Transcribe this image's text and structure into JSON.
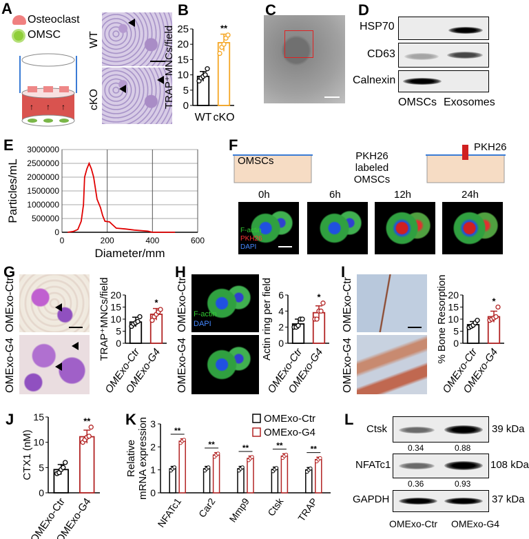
{
  "panels": {
    "A": "A",
    "B": "B",
    "C": "C",
    "D": "D",
    "E": "E",
    "F": "F",
    "G": "G",
    "H": "H",
    "I": "I",
    "J": "J",
    "K": "K",
    "L": "L"
  },
  "panelA": {
    "legend_osteoclast": "Osteoclast",
    "legend_omsc": "OMSC",
    "row_wt": "WT",
    "row_cko": "cKO"
  },
  "panelD": {
    "rows": [
      "HSP70",
      "CD63",
      "Calnexin"
    ],
    "columns": [
      "OMSCs",
      "Exosomes"
    ]
  },
  "panelF": {
    "dish_left": "OMSCs",
    "dish_middle": "PKH26 labeled OMSCs",
    "dye": "PKH26",
    "times": [
      "0h",
      "6h",
      "12h",
      "24h"
    ],
    "stain_factin": "F-actin",
    "stain_pkh26": "PKH26",
    "stain_dapi": "DAPI"
  },
  "panelG": {
    "row_ctr": "OMExo-Ctr",
    "row_g4": "OMExo-G4"
  },
  "panelH": {
    "row_ctr": "OMExo-Ctr",
    "row_g4": "OMExo-G4",
    "stain_factin": "F-actin",
    "stain_dapi": "DAPI"
  },
  "panelI": {
    "row_ctr": "OMExo-Ctr",
    "row_g4": "OMExo-G4"
  },
  "panelL": {
    "rows": [
      {
        "name": "Ctsk",
        "kda": "39 kDa",
        "values": [
          "0.34",
          "0.88"
        ]
      },
      {
        "name": "NFATc1",
        "kda": "108 kDa",
        "values": [
          "0.36",
          "0.93"
        ]
      },
      {
        "name": "GAPDH",
        "kda": "37 kDa",
        "values": []
      }
    ],
    "columns": [
      "OMExo-Ctr",
      "OMExo-G4"
    ]
  },
  "colors": {
    "control": "#000000",
    "cko": "#f5a623",
    "g4": "#b22222",
    "line": "#e00000"
  },
  "chart_data": [
    {
      "id": "B",
      "type": "bar",
      "categories": [
        "WT",
        "cKO"
      ],
      "values": [
        9.5,
        20.5
      ],
      "errors": [
        1.6,
        2.8
      ],
      "points": [
        [
          8,
          9,
          9.5,
          10,
          12
        ],
        [
          17,
          19,
          20,
          22,
          23
        ]
      ],
      "significance": [
        "",
        "**"
      ],
      "ylabel": "TRAP⁺MNCs/field",
      "ylim": [
        0,
        25
      ],
      "yticks": [
        0,
        5,
        10,
        15,
        20,
        25
      ]
    },
    {
      "id": "E",
      "type": "line",
      "x": [
        25,
        50,
        70,
        85,
        95,
        100,
        110,
        120,
        130,
        140,
        155,
        170,
        180,
        190,
        210,
        220,
        240,
        280,
        320,
        380,
        400,
        500
      ],
      "y": [
        0,
        30000,
        100000,
        400000,
        1000000,
        2000000,
        2300000,
        2500000,
        2300000,
        2000000,
        1200000,
        900000,
        600000,
        400000,
        380000,
        300000,
        150000,
        120000,
        80000,
        40000,
        0,
        0
      ],
      "xlabel": "Diameter/mm",
      "ylabel": "Particles/mL",
      "xlim": [
        0,
        600
      ],
      "ylim": [
        0,
        3000000
      ],
      "xticks": [
        0,
        200,
        400,
        600
      ],
      "yticks": [
        0,
        500000,
        1000000,
        1500000,
        2000000,
        2500000,
        3000000
      ],
      "grid": true
    },
    {
      "id": "G",
      "type": "bar",
      "categories": [
        "OMExo-Ctr",
        "OMExo-G4"
      ],
      "values": [
        8.8,
        12
      ],
      "errors": [
        2,
        2.4
      ],
      "points": [
        [
          7,
          8,
          8.5,
          9,
          11
        ],
        [
          9.5,
          11,
          12,
          13,
          14
        ]
      ],
      "significance": [
        "",
        "*"
      ],
      "ylabel": "TRAP⁺MNCs/field",
      "ylim": [
        0,
        20
      ],
      "yticks": [
        0,
        5,
        10,
        15,
        20
      ]
    },
    {
      "id": "H",
      "type": "bar",
      "categories": [
        "OMExo-Ctr",
        "OMExo-G4"
      ],
      "values": [
        2.4,
        3.8
      ],
      "errors": [
        0.6,
        0.85
      ],
      "points": [
        [
          2,
          2,
          2.2,
          3,
          3
        ],
        [
          3,
          3,
          4,
          4,
          5
        ]
      ],
      "significance": [
        "",
        "*"
      ],
      "ylabel": "Actin ring per field",
      "ylim": [
        0,
        6
      ],
      "yticks": [
        0,
        2,
        4,
        6
      ]
    },
    {
      "id": "I",
      "type": "bar",
      "categories": [
        "OMExo-Ctr",
        "OMExo-G4"
      ],
      "values": [
        7.7,
        11
      ],
      "errors": [
        1.3,
        2.3
      ],
      "points": [
        [
          6.5,
          7,
          7.5,
          8.5,
          9.5
        ],
        [
          9.5,
          10,
          10.5,
          11,
          15
        ]
      ],
      "significance": [
        "",
        "*"
      ],
      "ylabel": "% Bone Resorption",
      "ylim": [
        0,
        20
      ],
      "yticks": [
        0,
        5,
        10,
        15,
        20
      ]
    },
    {
      "id": "J",
      "type": "bar",
      "categories": [
        "OMExo-Ctr",
        "OMExo-G4"
      ],
      "values": [
        4.6,
        11.1
      ],
      "errors": [
        1,
        1.3
      ],
      "points": [
        [
          3.8,
          4,
          4.6,
          5,
          6
        ],
        [
          10,
          10.5,
          11,
          11.2,
          13
        ]
      ],
      "significance": [
        "",
        "**"
      ],
      "ylabel": "CTX1 (nM)",
      "ylim": [
        0,
        15
      ],
      "yticks": [
        0,
        5,
        10,
        15
      ]
    },
    {
      "id": "K",
      "type": "grouped-bar",
      "categories": [
        "NFATc1",
        "Car2",
        "Mmp9",
        "Ctsk",
        "TRAP"
      ],
      "series": [
        {
          "name": "OMExo-Ctr",
          "values": [
            1.05,
            1.05,
            1.05,
            1.02,
            1.0
          ]
        },
        {
          "name": "OMExo-G4",
          "values": [
            2.25,
            1.65,
            1.5,
            1.6,
            1.45
          ]
        }
      ],
      "significance": [
        "**",
        "**",
        "**",
        "**",
        "**"
      ],
      "ylabel": "Relative mRNA expression",
      "ylim": [
        0,
        3
      ],
      "yticks": [
        0,
        1,
        2,
        3
      ],
      "legend": "top-right"
    }
  ]
}
